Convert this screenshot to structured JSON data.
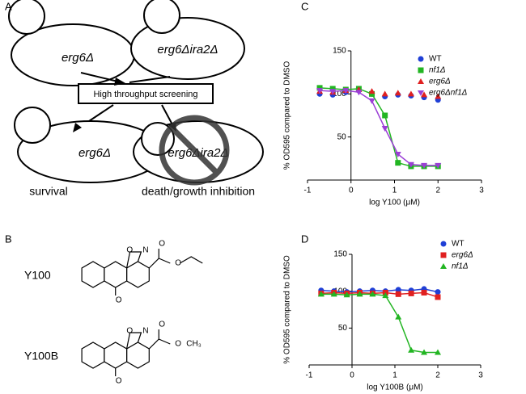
{
  "panels": [
    "A",
    "B",
    "C",
    "D"
  ],
  "diagram": {
    "top_left": "erg6Δ",
    "top_right": "erg6Δira2Δ",
    "screen": "High throughput screening",
    "bottom_left": "erg6Δ",
    "bottom_right": "erg6Δira2Δ",
    "survival": "survival",
    "death": "death/growth inhibition"
  },
  "structures": [
    {
      "name": "Y100",
      "atoms": [
        "O",
        "N",
        "O",
        "O",
        "O"
      ]
    },
    {
      "name": "Y100B",
      "atoms": [
        "O",
        "N",
        "O",
        "O",
        "O",
        "CH₃"
      ]
    }
  ],
  "chart_data": [
    {
      "type": "scatter",
      "xlabel": "log Y100 (μM)",
      "ylabel": "% OD595 compared to DMSO",
      "xlim": [
        -1,
        3
      ],
      "xticks": [
        -1,
        0,
        1,
        2,
        3
      ],
      "ylim": [
        0,
        150
      ],
      "yticks": [
        50,
        100,
        150
      ],
      "x": [
        -0.72,
        -0.42,
        -0.12,
        0.18,
        0.48,
        0.78,
        1.08,
        1.38,
        1.68,
        2.0
      ],
      "series": [
        {
          "name": "WT",
          "color": "#1f3fd6",
          "marker": "circle",
          "line": false,
          "values": [
            100,
            99,
            102,
            104,
            100,
            97,
            99,
            98,
            96,
            93
          ]
        },
        {
          "name": "nf1Δ",
          "color": "#22b522",
          "marker": "square",
          "line": true,
          "values": [
            107,
            106,
            105,
            106,
            100,
            75,
            20,
            16,
            16,
            16
          ]
        },
        {
          "name": "erg6Δ",
          "color": "#e02020",
          "marker": "triangle",
          "line": false,
          "values": [
            103,
            102,
            104,
            105,
            103,
            100,
            101,
            100,
            99,
            97
          ]
        },
        {
          "name": "erg6Δnf1Δ",
          "color": "#9b3fd6",
          "marker": "triangle-down",
          "line": true,
          "values": [
            104,
            103,
            104,
            102,
            92,
            60,
            30,
            18,
            17,
            17
          ]
        }
      ]
    },
    {
      "type": "scatter",
      "xlabel": "log Y100B (μM)",
      "ylabel": "% OD595 compared to DMSO",
      "xlim": [
        -1,
        3
      ],
      "xticks": [
        -1,
        0,
        1,
        2,
        3
      ],
      "ylim": [
        0,
        150
      ],
      "yticks": [
        50,
        100,
        150
      ],
      "x": [
        -0.72,
        -0.42,
        -0.12,
        0.18,
        0.48,
        0.78,
        1.08,
        1.38,
        1.68,
        2.0
      ],
      "series": [
        {
          "name": "WT",
          "color": "#1f3fd6",
          "marker": "circle",
          "line": true,
          "values": [
            101,
            100,
            99,
            100,
            101,
            100,
            102,
            101,
            103,
            99
          ]
        },
        {
          "name": "erg6Δ",
          "color": "#e02020",
          "marker": "square",
          "line": true,
          "values": [
            97,
            98,
            97,
            98,
            97,
            98,
            96,
            97,
            98,
            92
          ]
        },
        {
          "name": "nf1Δ",
          "color": "#22b522",
          "marker": "triangle",
          "line": true,
          "values": [
            96,
            96,
            95,
            96,
            96,
            94,
            65,
            20,
            17,
            17
          ]
        }
      ]
    }
  ]
}
